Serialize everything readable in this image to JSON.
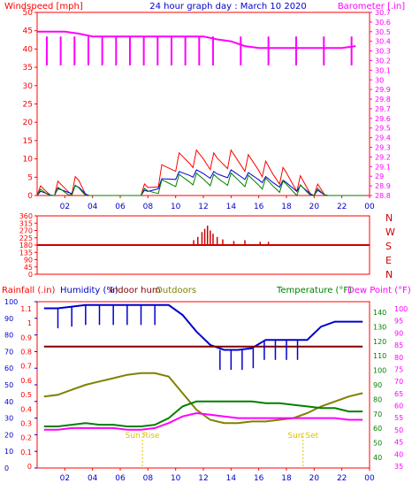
{
  "title": "24 hour graph day : March 10 2020",
  "colors": {
    "frame": "#ff0000",
    "title": "#0000cc",
    "wind": "#ff0000",
    "gust_avg": "#0000cc",
    "wind_low": "#008000",
    "barometer": "#ff00ff",
    "direction": "#cc0000",
    "humidity": "#0000cc",
    "indoor_hum": "#800000",
    "outdoor_temp": "#808000",
    "dew_point": "#008000",
    "temperature": "#ff00ff",
    "rain_label": "#ff0000",
    "sun_label": "#e0c000"
  },
  "chart_data": [
    {
      "type": "line",
      "panel": "wind-barometer",
      "title": "24 hour graph day : March 10 2020",
      "ylabel": "Windspeed [mph]",
      "y2label": "Barometer [.in]",
      "x_ticks": [
        "02",
        "04",
        "06",
        "08",
        "10",
        "12",
        "14",
        "16",
        "18",
        "20",
        "22",
        "00"
      ],
      "ylim": [
        0,
        50
      ],
      "y_ticks": [
        0,
        5,
        10,
        15,
        20,
        25,
        30,
        35,
        40,
        45,
        50
      ],
      "y2lim": [
        28.8,
        30.7
      ],
      "y2_ticks": [
        "28.8",
        "28.9",
        "29",
        "29.1",
        "29.2",
        "29.3",
        "29.4",
        "29.5",
        "29.6",
        "29.7",
        "29.8",
        "29.9",
        "30",
        "30.1",
        "30.2",
        "30.3",
        "30.4",
        "30.5",
        "30.6",
        "30.7"
      ],
      "x_hours": [
        1,
        2,
        3,
        4,
        5,
        6,
        7,
        8,
        9,
        10,
        11,
        12,
        13,
        14,
        15,
        16,
        17,
        18,
        19,
        20,
        21,
        22,
        23,
        24
      ],
      "series": [
        {
          "name": "Windspeed [mph]",
          "values": [
            0,
            1,
            2,
            3,
            0,
            0,
            0,
            0,
            1,
            6,
            9,
            10,
            10,
            9,
            10,
            9,
            8,
            6,
            5,
            3,
            1,
            0,
            0,
            0
          ]
        },
        {
          "name": "Barometer [.in]",
          "values": [
            30.5,
            30.5,
            30.5,
            30.48,
            30.45,
            30.45,
            30.45,
            30.45,
            30.45,
            30.45,
            30.45,
            30.45,
            30.45,
            30.42,
            30.4,
            30.35,
            30.33,
            30.33,
            30.33,
            30.33,
            30.33,
            30.33,
            30.33,
            30.35
          ]
        }
      ]
    },
    {
      "type": "scatter",
      "panel": "wind-direction",
      "y_ticks": [
        0,
        45,
        90,
        135,
        180,
        225,
        270,
        315,
        360
      ],
      "y_letters": [
        "N",
        "W",
        "S",
        "E",
        "N"
      ],
      "ylim": [
        0,
        360
      ],
      "x_ticks": [
        "02",
        "04",
        "06",
        "08",
        "10",
        "12",
        "14",
        "16",
        "18",
        "20",
        "22",
        "00"
      ],
      "baseline": 180,
      "series": [
        {
          "name": "direction",
          "values": [
            [
              11.3,
              210
            ],
            [
              11.6,
              230
            ],
            [
              11.9,
              260
            ],
            [
              12.1,
              280
            ],
            [
              12.3,
              300
            ],
            [
              12.5,
              270
            ],
            [
              12.7,
              250
            ],
            [
              13.0,
              230
            ],
            [
              13.4,
              215
            ],
            [
              14.2,
              205
            ],
            [
              15.0,
              210
            ],
            [
              16.1,
              200
            ],
            [
              16.7,
              200
            ]
          ]
        }
      ]
    },
    {
      "type": "line",
      "panel": "humidity-temperature",
      "ylabel": "Humidity (%)",
      "rain_label": "Rainfall (.in)",
      "indoor_label": "Indoor hum",
      "outdoor_label": "Outdoors",
      "y2label": "Temperature (°F)",
      "y3label": "Dew Point (°F)",
      "ylim": [
        0,
        100
      ],
      "y_ticks": [
        0,
        10,
        20,
        30,
        40,
        50,
        60,
        70,
        80,
        90,
        100
      ],
      "rain_ticks": [
        "0",
        "0.1",
        "0.2",
        "0.3",
        "0.4",
        "0.5",
        "0.6",
        "0.7",
        "0.8",
        "0.9",
        "1",
        "1.1"
      ],
      "y2_ticks": [
        "40",
        "50",
        "60",
        "70",
        "80",
        "90",
        "100",
        "110",
        "120",
        "130",
        "140"
      ],
      "y3_ticks": [
        "35",
        "40",
        "45",
        "50",
        "55",
        "60",
        "65",
        "70",
        "75",
        "80",
        "85",
        "90",
        "95",
        "100"
      ],
      "x_ticks": [
        "02",
        "04",
        "06",
        "08",
        "10",
        "12",
        "14",
        "16",
        "18",
        "20",
        "22",
        "00"
      ],
      "sun_rise": "Sun Rise",
      "sun_set": "Sun Set",
      "x_hours": [
        1,
        2,
        3,
        4,
        5,
        6,
        7,
        8,
        9,
        10,
        11,
        12,
        13,
        14,
        15,
        16,
        17,
        18,
        19,
        20,
        21,
        22,
        23,
        24
      ],
      "series": [
        {
          "name": "Humidity (%)",
          "values": [
            96,
            96,
            97,
            98,
            98,
            98,
            98,
            98,
            98,
            98,
            92,
            82,
            74,
            71,
            71,
            72,
            77,
            77,
            77,
            77,
            85,
            88,
            88,
            88
          ]
        },
        {
          "name": "Indoor hum",
          "values": [
            73,
            73,
            73,
            73,
            73,
            73,
            73,
            73,
            73,
            73,
            73,
            73,
            73,
            73,
            73,
            73,
            73,
            73,
            73,
            73,
            73,
            73,
            73,
            73
          ]
        },
        {
          "name": "Outdoors",
          "values": [
            43,
            44,
            47,
            50,
            52,
            54,
            56,
            57,
            57,
            55,
            45,
            35,
            29,
            27,
            27,
            28,
            28,
            29,
            30,
            33,
            37,
            40,
            43,
            45
          ]
        },
        {
          "name": "Temperature (°F)",
          "values": [
            25,
            25,
            26,
            27,
            26,
            26,
            25,
            25,
            26,
            30,
            37,
            40,
            40,
            40,
            40,
            40,
            39,
            39,
            38,
            37,
            36,
            36,
            34,
            34
          ]
        },
        {
          "name": "Dew Point (°F)",
          "values": [
            23,
            23,
            24,
            24,
            24,
            24,
            23,
            23,
            24,
            27,
            31,
            33,
            32,
            31,
            30,
            30,
            30,
            30,
            30,
            30,
            30,
            30,
            29,
            29
          ]
        }
      ]
    }
  ]
}
